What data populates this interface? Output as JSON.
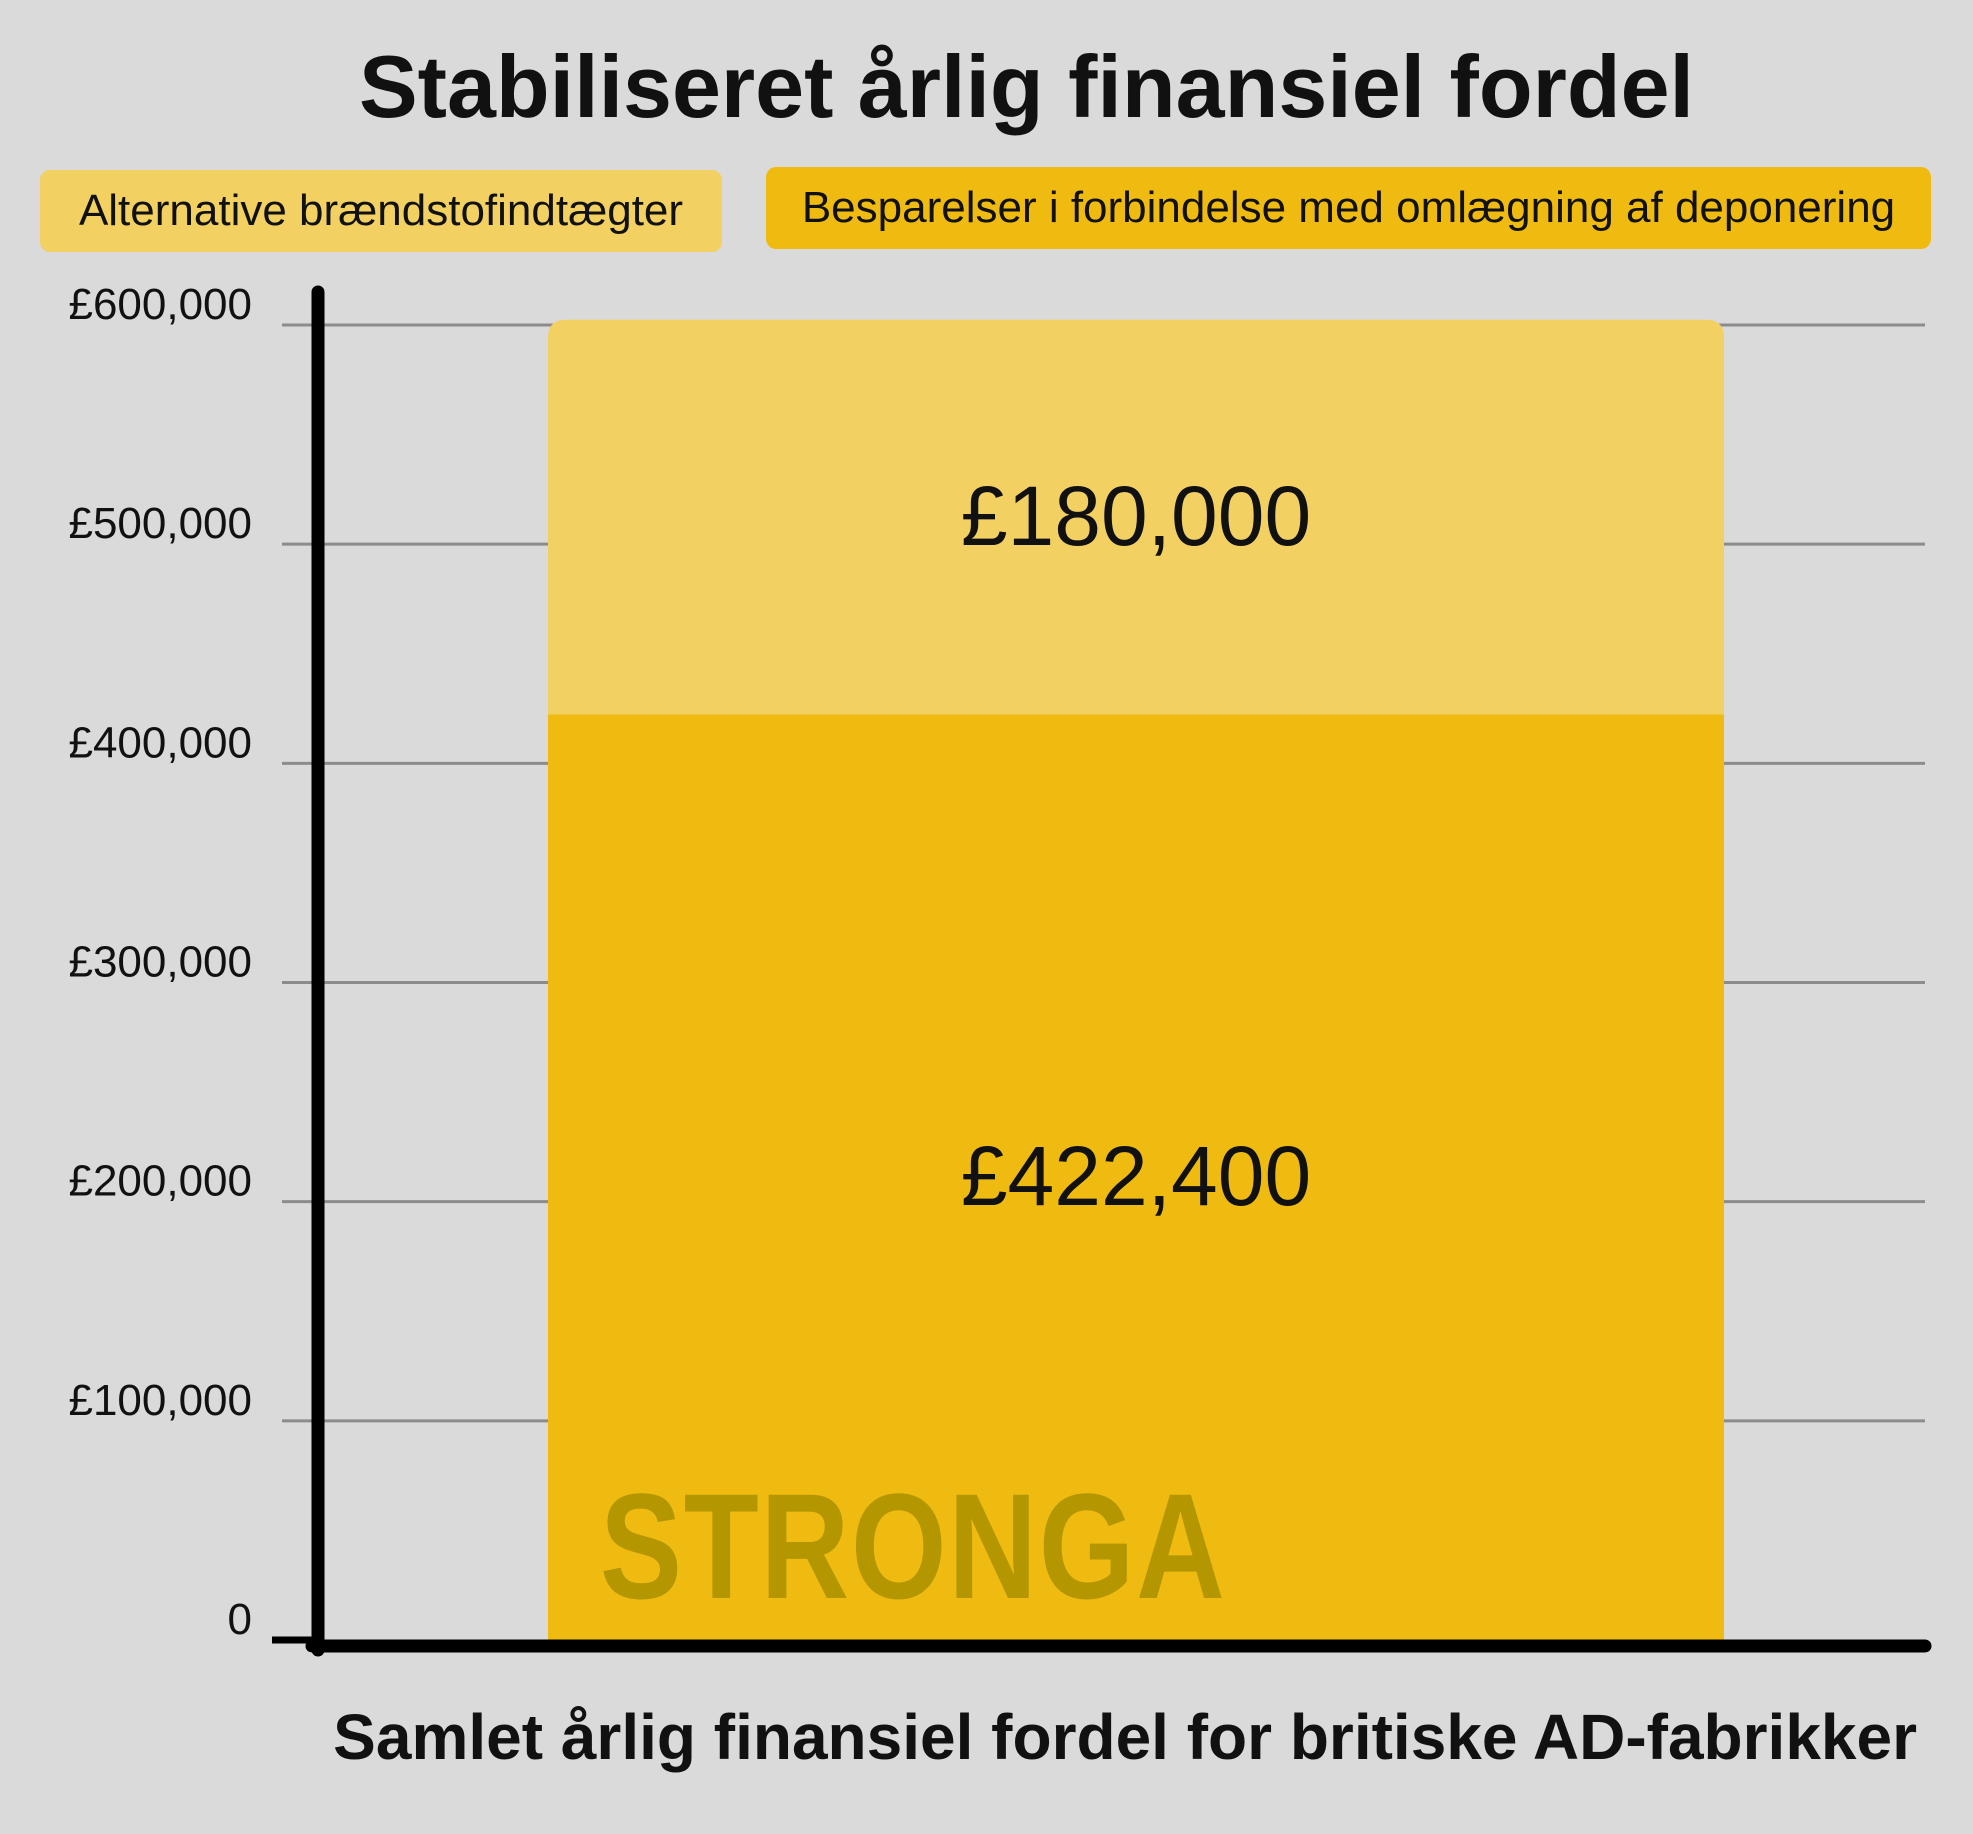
{
  "chart_data": {
    "type": "bar",
    "stacked": true,
    "title": "Stabiliseret årlig finansiel fordel",
    "xlabel": "Samlet årlig finansiel fordel for britiske AD-fabrikker",
    "ylabel": "",
    "ylim": [
      0,
      600000
    ],
    "yticks": [
      0,
      100000,
      200000,
      300000,
      400000,
      500000,
      600000
    ],
    "ytick_labels": [
      "0",
      "£100,000",
      "£200,000",
      "£300,000",
      "£400,000",
      "£500,000",
      "£600,000"
    ],
    "grid": true,
    "legend_position": "top",
    "series": [
      {
        "name": "Besparelser i forbindelse med omlægning af deponering",
        "value": 422400,
        "label": "£422,400",
        "color": "#efbb10"
      },
      {
        "name": "Alternative brændstofindtægter",
        "value": 180000,
        "label": "£180,000",
        "color": "#f2d062"
      }
    ]
  },
  "watermark": "STRONGA",
  "colors": {
    "background": "#dadada",
    "gridline": "#8c8c8c",
    "axis": "#000000",
    "watermark": "#b49600"
  }
}
